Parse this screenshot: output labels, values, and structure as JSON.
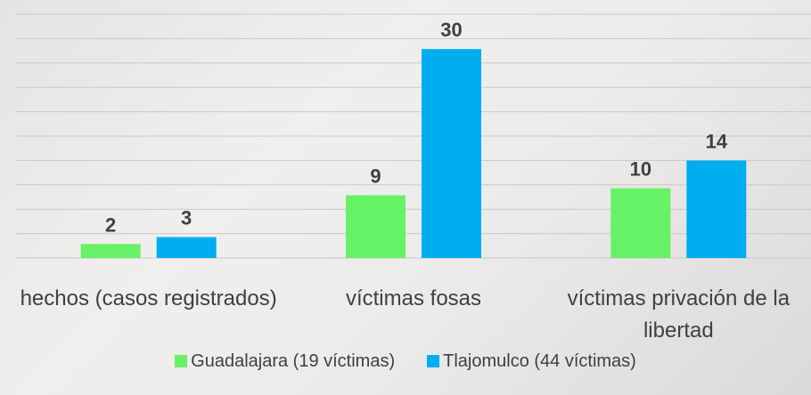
{
  "chart_data": {
    "type": "bar",
    "categories": [
      "hechos (casos registrados)",
      "víctimas fosas",
      "víctimas privación de la libertad"
    ],
    "series": [
      {
        "name": "Guadalajara (19 víctimas)",
        "color": "#66f266",
        "values": [
          2,
          9,
          10
        ]
      },
      {
        "name": "Tlajomulco (44 víctimas)",
        "color": "#00aeef",
        "values": [
          3,
          30,
          14
        ]
      }
    ],
    "ylim": [
      0,
      35
    ],
    "yticks": [
      0,
      3.5,
      7,
      10.5,
      14,
      17.5,
      21,
      24.5,
      28,
      31.5,
      35
    ],
    "grid": true,
    "legend": "bottom"
  }
}
